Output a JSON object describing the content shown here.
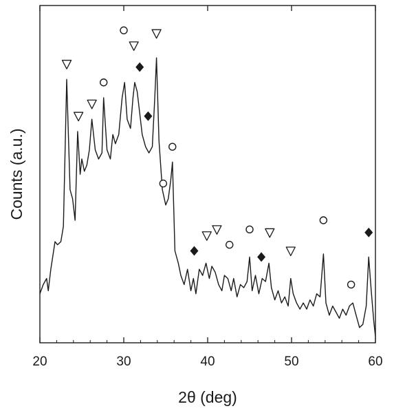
{
  "chart_data": {
    "type": "line",
    "xlabel": "2θ (deg)",
    "ylabel": "Counts (a.u.)",
    "xlim": [
      20,
      60
    ],
    "ylim": [
      0,
      100
    ],
    "x_ticks": [
      20,
      30,
      40,
      50,
      60
    ],
    "y_ticks": [],
    "grid": false,
    "legend": "none",
    "line_color": "#1a1a1a",
    "series": [
      {
        "values": [
          [
            20.0,
            16
          ],
          [
            20.4,
            19
          ],
          [
            20.8,
            21
          ],
          [
            21.0,
            17
          ],
          [
            21.3,
            24
          ],
          [
            21.8,
            33
          ],
          [
            22.1,
            32
          ],
          [
            22.5,
            33
          ],
          [
            22.8,
            38
          ],
          [
            23.2,
            86
          ],
          [
            23.6,
            50
          ],
          [
            23.9,
            47
          ],
          [
            24.2,
            40
          ],
          [
            24.5,
            69
          ],
          [
            24.8,
            55
          ],
          [
            25.0,
            60
          ],
          [
            25.3,
            56
          ],
          [
            25.6,
            58
          ],
          [
            25.9,
            63
          ],
          [
            26.2,
            73
          ],
          [
            26.6,
            63
          ],
          [
            27.0,
            60
          ],
          [
            27.4,
            62
          ],
          [
            27.6,
            80
          ],
          [
            28.0,
            63
          ],
          [
            28.4,
            60
          ],
          [
            28.7,
            68
          ],
          [
            29.0,
            65
          ],
          [
            29.4,
            68
          ],
          [
            29.8,
            80
          ],
          [
            30.1,
            85
          ],
          [
            30.4,
            73
          ],
          [
            30.8,
            70
          ],
          [
            31.1,
            80
          ],
          [
            31.3,
            85
          ],
          [
            31.6,
            82
          ],
          [
            31.9,
            75
          ],
          [
            32.2,
            68
          ],
          [
            32.6,
            64
          ],
          [
            33.0,
            62
          ],
          [
            33.4,
            64
          ],
          [
            33.7,
            80
          ],
          [
            33.9,
            93
          ],
          [
            34.2,
            66
          ],
          [
            34.6,
            50
          ],
          [
            35.0,
            45
          ],
          [
            35.3,
            47
          ],
          [
            35.6,
            53
          ],
          [
            35.8,
            59
          ],
          [
            36.1,
            30
          ],
          [
            36.5,
            26
          ],
          [
            36.8,
            22
          ],
          [
            37.2,
            19
          ],
          [
            37.6,
            24
          ],
          [
            38.0,
            17
          ],
          [
            38.3,
            21
          ],
          [
            38.6,
            16
          ],
          [
            39.0,
            24
          ],
          [
            39.4,
            22
          ],
          [
            39.8,
            26
          ],
          [
            40.2,
            21
          ],
          [
            40.5,
            25
          ],
          [
            40.9,
            23
          ],
          [
            41.3,
            19
          ],
          [
            41.7,
            17
          ],
          [
            42.0,
            22
          ],
          [
            42.4,
            21
          ],
          [
            42.8,
            17
          ],
          [
            43.1,
            21
          ],
          [
            43.5,
            15
          ],
          [
            43.9,
            19
          ],
          [
            44.3,
            18
          ],
          [
            44.7,
            20
          ],
          [
            45.0,
            28
          ],
          [
            45.3,
            17
          ],
          [
            45.7,
            22
          ],
          [
            46.1,
            16
          ],
          [
            46.5,
            21
          ],
          [
            46.9,
            20
          ],
          [
            47.3,
            26
          ],
          [
            47.6,
            18
          ],
          [
            48.0,
            14
          ],
          [
            48.4,
            17
          ],
          [
            48.8,
            13
          ],
          [
            49.2,
            15
          ],
          [
            49.6,
            12
          ],
          [
            49.9,
            21
          ],
          [
            50.2,
            16
          ],
          [
            50.6,
            13
          ],
          [
            51.0,
            11
          ],
          [
            51.4,
            13
          ],
          [
            51.8,
            11
          ],
          [
            52.2,
            14
          ],
          [
            52.6,
            12
          ],
          [
            53.0,
            16
          ],
          [
            53.4,
            15
          ],
          [
            53.8,
            29
          ],
          [
            54.1,
            13
          ],
          [
            54.5,
            9
          ],
          [
            54.9,
            12
          ],
          [
            55.3,
            10
          ],
          [
            55.7,
            8
          ],
          [
            56.1,
            11
          ],
          [
            56.5,
            9
          ],
          [
            56.9,
            12
          ],
          [
            57.3,
            13
          ],
          [
            57.7,
            9
          ],
          [
            58.1,
            5
          ],
          [
            58.5,
            6
          ],
          [
            58.9,
            12
          ],
          [
            59.2,
            28
          ],
          [
            59.5,
            17
          ],
          [
            59.8,
            7
          ],
          [
            60.0,
            2
          ]
        ]
      }
    ],
    "markers": [
      {
        "symbol": "triangle-down",
        "x": 23.2,
        "y": 91
      },
      {
        "symbol": "triangle-down",
        "x": 24.6,
        "y": 74
      },
      {
        "symbol": "triangle-down",
        "x": 26.2,
        "y": 78
      },
      {
        "symbol": "triangle-down",
        "x": 31.2,
        "y": 97
      },
      {
        "symbol": "triangle-down",
        "x": 33.9,
        "y": 101
      },
      {
        "symbol": "triangle-down",
        "x": 39.9,
        "y": 35
      },
      {
        "symbol": "triangle-down",
        "x": 41.1,
        "y": 37
      },
      {
        "symbol": "triangle-down",
        "x": 47.4,
        "y": 36
      },
      {
        "symbol": "triangle-down",
        "x": 49.9,
        "y": 30
      },
      {
        "symbol": "circle",
        "x": 27.6,
        "y": 85
      },
      {
        "symbol": "circle",
        "x": 30.0,
        "y": 102
      },
      {
        "symbol": "circle",
        "x": 35.8,
        "y": 64
      },
      {
        "symbol": "circle",
        "x": 34.7,
        "y": 52
      },
      {
        "symbol": "circle",
        "x": 42.6,
        "y": 32
      },
      {
        "symbol": "circle",
        "x": 45.0,
        "y": 37
      },
      {
        "symbol": "circle",
        "x": 53.8,
        "y": 40
      },
      {
        "symbol": "circle",
        "x": 57.1,
        "y": 19
      },
      {
        "symbol": "diamond",
        "x": 31.9,
        "y": 90
      },
      {
        "symbol": "diamond",
        "x": 32.9,
        "y": 74
      },
      {
        "symbol": "diamond",
        "x": 38.4,
        "y": 30
      },
      {
        "symbol": "diamond",
        "x": 46.4,
        "y": 28
      },
      {
        "symbol": "diamond",
        "x": 59.2,
        "y": 36
      }
    ]
  }
}
